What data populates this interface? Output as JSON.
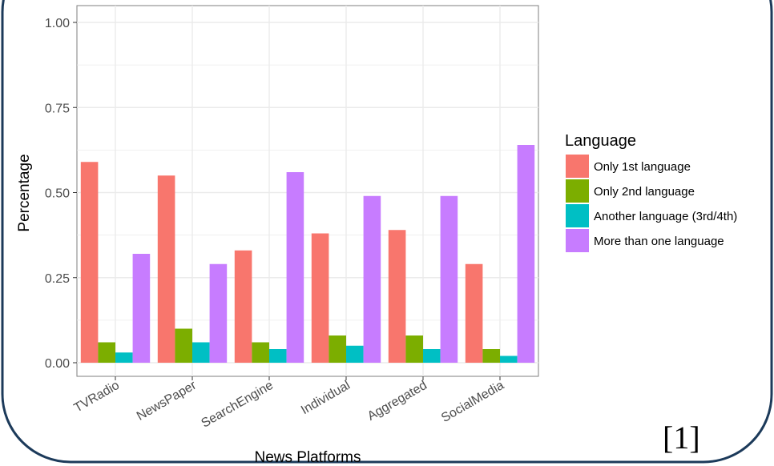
{
  "colors": {
    "frame_border": "#1c3a5a",
    "panel_background": "#ffffff",
    "grid": "#ebebeb",
    "axis_text": "#4d4d4d",
    "title_text": "#000000",
    "series": [
      "#f8766d",
      "#7cae00",
      "#00bfc4",
      "#c77cff"
    ]
  },
  "citation": "[1]",
  "chart_data": {
    "type": "bar",
    "title": "",
    "xlabel": "News Platforms",
    "ylabel": "Percentage",
    "ylim": [
      0,
      1.0
    ],
    "y_ticks": [
      "0.00",
      "0.25",
      "0.50",
      "0.75",
      "1.00"
    ],
    "y_tick_values": [
      0,
      0.25,
      0.5,
      0.75,
      1.0
    ],
    "grid": true,
    "legend": {
      "title": "Language",
      "placement": "right"
    },
    "categories": [
      "TVRadio",
      "NewsPaper",
      "SearchEngine",
      "Individual",
      "Aggregated",
      "SocialMedia"
    ],
    "series": [
      {
        "name": "Only 1st language",
        "values": [
          0.59,
          0.55,
          0.33,
          0.38,
          0.39,
          0.29
        ]
      },
      {
        "name": "Only 2nd language",
        "values": [
          0.06,
          0.1,
          0.06,
          0.08,
          0.08,
          0.04
        ]
      },
      {
        "name": "Another language (3rd/4th)",
        "values": [
          0.03,
          0.06,
          0.04,
          0.05,
          0.04,
          0.02
        ]
      },
      {
        "name": "More than one language",
        "values": [
          0.32,
          0.29,
          0.56,
          0.49,
          0.49,
          0.64
        ]
      }
    ]
  }
}
